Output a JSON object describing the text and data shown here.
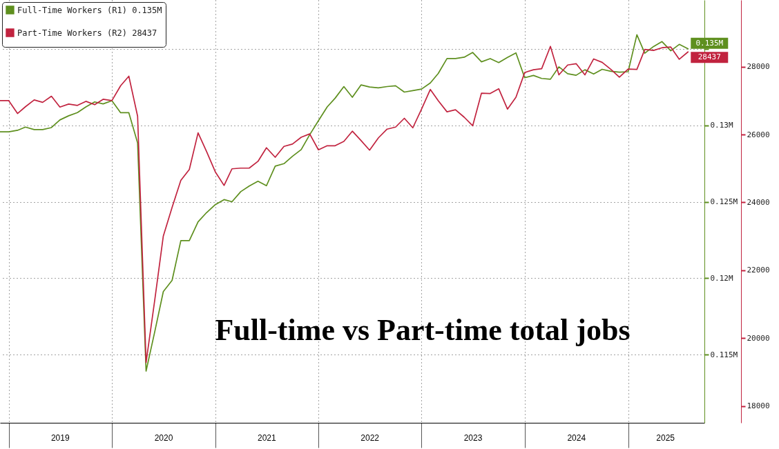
{
  "chart_data": {
    "type": "line",
    "title": "Full-time vs Part-time total jobs",
    "x": [
      "2018-12",
      "2019-01",
      "2019-02",
      "2019-03",
      "2019-04",
      "2019-05",
      "2019-06",
      "2019-07",
      "2019-08",
      "2019-09",
      "2019-10",
      "2019-11",
      "2019-12",
      "2020-01",
      "2020-02",
      "2020-03",
      "2020-04",
      "2020-05",
      "2020-06",
      "2020-07",
      "2020-08",
      "2020-09",
      "2020-10",
      "2020-11",
      "2020-12",
      "2021-01",
      "2021-02",
      "2021-03",
      "2021-04",
      "2021-05",
      "2021-06",
      "2021-07",
      "2021-08",
      "2021-09",
      "2021-10",
      "2021-11",
      "2021-12",
      "2022-01",
      "2022-02",
      "2022-03",
      "2022-04",
      "2022-05",
      "2022-06",
      "2022-07",
      "2022-08",
      "2022-09",
      "2022-10",
      "2022-11",
      "2022-12",
      "2023-01",
      "2023-02",
      "2023-03",
      "2023-04",
      "2023-05",
      "2023-06",
      "2023-07",
      "2023-08",
      "2023-09",
      "2023-10",
      "2023-11",
      "2023-12",
      "2024-01",
      "2024-02",
      "2024-03",
      "2024-04",
      "2024-05",
      "2024-06",
      "2024-07",
      "2024-08",
      "2024-09",
      "2024-10",
      "2024-11",
      "2024-12",
      "2025-01",
      "2025-02",
      "2025-03",
      "2025-04",
      "2025-05",
      "2025-06",
      "2025-07",
      "2025-08"
    ],
    "series": [
      {
        "name": "Full-Time Workers (R1) 0.135M",
        "color": "#5e8f1e",
        "values": [
          0.12957,
          0.12957,
          0.12967,
          0.12988,
          0.12972,
          0.12972,
          0.12985,
          0.13035,
          0.13062,
          0.13083,
          0.1312,
          0.13153,
          0.1314,
          0.13161,
          0.13082,
          0.13082,
          0.12885,
          0.11393,
          0.11653,
          0.11913,
          0.11986,
          0.12246,
          0.12246,
          0.12369,
          0.12429,
          0.12481,
          0.12514,
          0.125,
          0.12566,
          0.12603,
          0.12634,
          0.12605,
          0.12733,
          0.12749,
          0.12797,
          0.12841,
          0.12938,
          0.1303,
          0.1312,
          0.13177,
          0.13253,
          0.13183,
          0.13264,
          0.1325,
          0.13245,
          0.13253,
          0.13258,
          0.13217,
          0.13227,
          0.13237,
          0.13277,
          0.13339,
          0.13436,
          0.13436,
          0.13445,
          0.13476,
          0.13415,
          0.13436,
          0.1341,
          0.13444,
          0.13473,
          0.13311,
          0.13326,
          0.13306,
          0.13301,
          0.13382,
          0.13337,
          0.13327,
          0.13363,
          0.13335,
          0.13366,
          0.13353,
          0.13347,
          0.1335,
          0.13592,
          0.13471,
          0.13515,
          0.13547,
          0.13487,
          0.13529,
          0.135
        ],
        "value_labels": [
          null,
          null,
          null,
          null,
          null,
          null,
          null,
          null,
          null,
          null,
          null,
          null,
          null,
          null,
          null,
          null,
          null,
          null,
          null,
          null,
          null,
          null,
          null,
          null,
          null,
          null,
          null,
          null,
          null,
          null,
          null,
          null,
          null,
          null,
          null,
          null,
          null,
          null,
          null,
          null,
          null,
          null,
          null,
          null,
          null,
          null,
          null,
          null,
          null,
          null,
          null,
          null,
          null,
          null,
          null,
          null,
          null,
          null,
          null,
          null,
          null,
          null,
          null,
          null,
          null,
          null,
          null,
          null,
          null,
          null,
          null,
          null,
          null,
          null,
          null,
          null,
          null,
          null,
          null,
          null,
          "0.135M"
        ]
      },
      {
        "name": "Part-Time Workers (R2) 28437",
        "color": "#c1233f",
        "axis": "y2",
        "values": [
          27000,
          27000,
          26620,
          26820,
          27020,
          26950,
          27130,
          26810,
          26900,
          26860,
          26980,
          26880,
          27040,
          27000,
          27440,
          27720,
          26540,
          19280,
          21140,
          23010,
          23850,
          24650,
          24970,
          26050,
          25500,
          24900,
          24500,
          24990,
          25010,
          25010,
          25210,
          25610,
          25330,
          25650,
          25720,
          25920,
          26020,
          25550,
          25670,
          25670,
          25800,
          26100,
          25820,
          25540,
          25900,
          26160,
          26220,
          26480,
          26200,
          26750,
          27330,
          27000,
          26670,
          26730,
          26510,
          26260,
          27220,
          27210,
          27350,
          26750,
          27100,
          27830,
          27910,
          27940,
          28600,
          27760,
          28050,
          28090,
          27760,
          28230,
          28130,
          27920,
          27690,
          27930,
          27920,
          28510,
          28480,
          28560,
          28580,
          28220,
          28437
        ],
        "value_labels": [
          null,
          null,
          null,
          null,
          null,
          null,
          null,
          null,
          null,
          null,
          null,
          null,
          null,
          null,
          null,
          null,
          null,
          null,
          null,
          null,
          null,
          null,
          null,
          null,
          null,
          null,
          null,
          null,
          null,
          null,
          null,
          null,
          null,
          null,
          null,
          null,
          null,
          null,
          null,
          null,
          null,
          null,
          null,
          null,
          null,
          null,
          null,
          null,
          null,
          null,
          null,
          null,
          null,
          null,
          null,
          null,
          null,
          null,
          null,
          null,
          null,
          null,
          null,
          null,
          null,
          null,
          null,
          null,
          null,
          null,
          null,
          null,
          null,
          null,
          null,
          null,
          null,
          null,
          null,
          null,
          "28437"
        ]
      }
    ],
    "xlim": [
      "2018-12",
      "2025-09-28"
    ],
    "xticks": [
      {
        "value": "2019",
        "label": null
      },
      {
        "value": "2019-07",
        "label": "2019"
      },
      {
        "value": "2020",
        "label": null
      },
      {
        "value": "2020-07",
        "label": "2020"
      },
      {
        "value": "2021",
        "label": null
      },
      {
        "value": "2021-07",
        "label": "2021"
      },
      {
        "value": "2022",
        "label": null
      },
      {
        "value": "2022-07",
        "label": "2022"
      },
      {
        "value": "2023",
        "label": null
      },
      {
        "value": "2023-07",
        "label": "2023"
      },
      {
        "value": "2024",
        "label": null
      },
      {
        "value": "2024-07",
        "label": "2024"
      },
      {
        "value": "2025",
        "label": null
      },
      {
        "value": "2025-05-12",
        "label": "2025"
      }
    ],
    "ylim": [
      0.11055,
      0.13819
    ],
    "yticks": [
      {
        "value": 0.115,
        "label": "0.115M"
      },
      {
        "value": 0.12,
        "label": "0.12M"
      },
      {
        "value": 0.125,
        "label": "0.125M"
      },
      {
        "value": 0.13,
        "label": "0.13M"
      },
      {
        "value": 0.135,
        "label": null
      }
    ],
    "y2lim": [
      17502,
      29967
    ],
    "y2ticks": [
      18000,
      20000,
      22000,
      24000,
      26000,
      28000
    ],
    "grid": true,
    "legend": "top left"
  }
}
